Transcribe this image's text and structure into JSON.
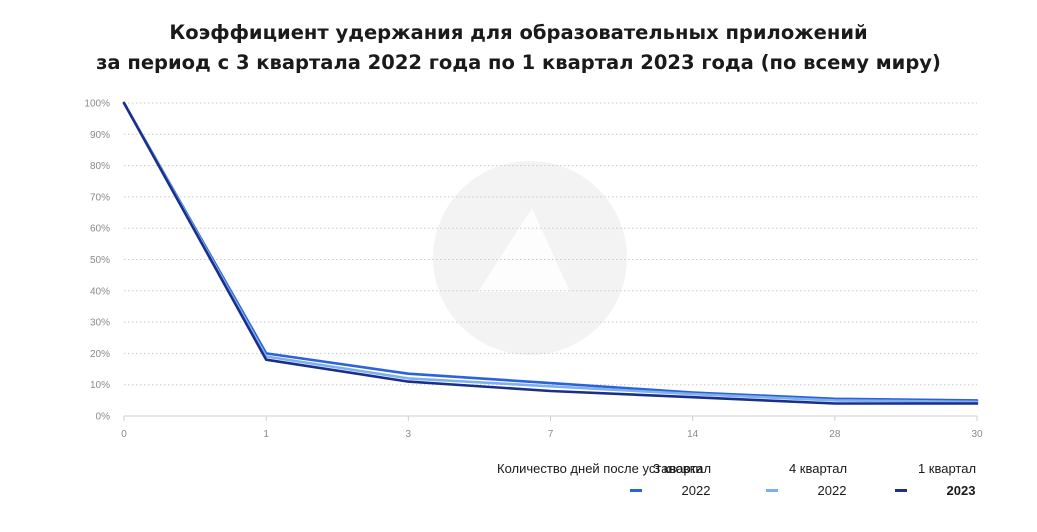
{
  "chart_data": {
    "type": "line",
    "title_line1": "Коэффициент удержания для образовательных приложений",
    "title_line2": "за период с 3 квартала 2022 года по 1 квартал 2023 года (по всему миру)",
    "xlabel": "Количество дней после установки",
    "categories": [
      "0",
      "1",
      "3",
      "7",
      "14",
      "28",
      "30"
    ],
    "y_ticks": [
      "0%",
      "10%",
      "20%",
      "30%",
      "40%",
      "50%",
      "60%",
      "70%",
      "80%",
      "90%",
      "100%"
    ],
    "ylim": [
      0,
      100
    ],
    "grid": true,
    "legend_position": "bottom-right",
    "series": [
      {
        "name_line1": "3 квартал",
        "name_line2": "2022",
        "color": "#2a62dc",
        "values": [
          100,
          20,
          13.5,
          10.5,
          7.5,
          5.5,
          5
        ]
      },
      {
        "name_line1": "4 квартал",
        "name_line2": "2022",
        "color": "#7fb0ee",
        "values": [
          100,
          19,
          12,
          9.5,
          7,
          5,
          4.5
        ]
      },
      {
        "name_line1": "1 квартал",
        "name_line2": "2023",
        "color": "#1a2f8a",
        "values": [
          100,
          18,
          11,
          8,
          6,
          4,
          4
        ]
      }
    ]
  }
}
